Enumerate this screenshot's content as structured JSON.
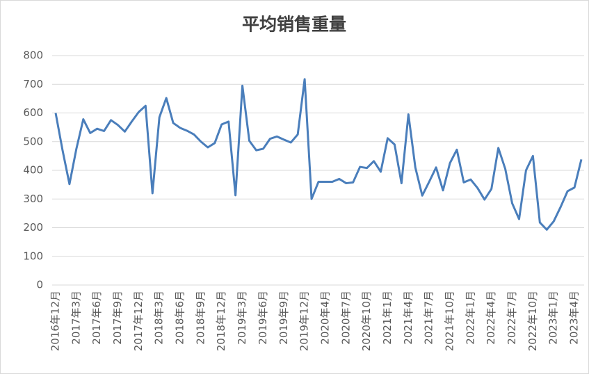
{
  "chart_data": {
    "type": "line",
    "title": "平均销售重量",
    "categories": [
      "2016年12月",
      null,
      null,
      "2017年3月",
      null,
      null,
      "2017年6月",
      null,
      null,
      "2017年9月",
      null,
      null,
      "2017年12月",
      null,
      null,
      "2018年3月",
      null,
      null,
      "2018年6月",
      null,
      null,
      "2018年9月",
      null,
      null,
      "2018年12月",
      null,
      null,
      "2019年3月",
      null,
      null,
      "2019年6月",
      null,
      null,
      "2019年9月",
      null,
      null,
      "2019年12月",
      null,
      null,
      "2020年4月",
      null,
      null,
      "2020年7月",
      null,
      null,
      "2020年10月",
      null,
      null,
      "2021年1月",
      null,
      null,
      "2021年4月",
      null,
      null,
      "2021年7月",
      null,
      null,
      "2021年10月",
      null,
      null,
      "2022年1月",
      null,
      null,
      "2022年4月",
      null,
      null,
      "2022年7月",
      null,
      null,
      "2022年10月",
      null,
      null,
      "2023年1月",
      null,
      null,
      "2023年4月",
      null
    ],
    "series": [
      {
        "color": "#4a7ebb",
        "values": [
          600,
          470,
          352,
          475,
          578,
          530,
          545,
          537,
          575,
          558,
          535,
          570,
          603,
          625,
          320,
          585,
          652,
          565,
          548,
          538,
          525,
          500,
          480,
          495,
          560,
          570,
          313,
          695,
          503,
          470,
          475,
          510,
          518,
          507,
          497,
          525,
          718,
          300,
          360,
          360,
          360,
          370,
          355,
          358,
          412,
          408,
          432,
          395,
          512,
          490,
          355,
          595,
          410,
          312,
          360,
          410,
          330,
          425,
          472,
          358,
          368,
          338,
          298,
          335,
          478,
          405,
          285,
          230,
          400,
          450,
          218,
          193,
          222,
          272,
          327,
          340,
          438
        ]
      }
    ],
    "ylim": [
      0,
      800
    ],
    "yticks": [
      0,
      100,
      200,
      300,
      400,
      500,
      600,
      700,
      800
    ],
    "grid": true
  }
}
